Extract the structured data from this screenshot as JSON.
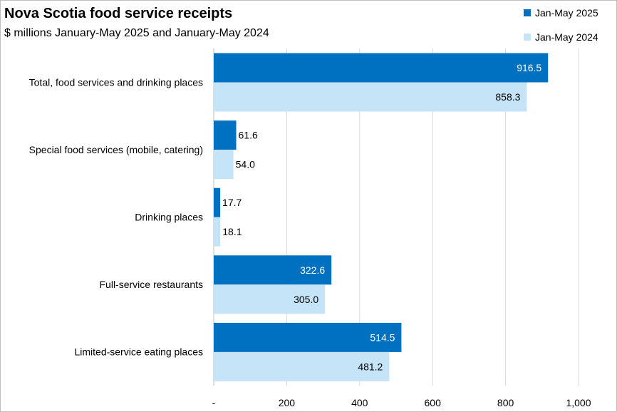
{
  "chart_data": {
    "type": "bar",
    "orientation": "horizontal",
    "title": "Nova Scotia food service receipts",
    "subtitle": "$ millions January-May 2025 and January-May 2024",
    "categories": [
      "Total, food services and drinking places",
      "Special food services (mobile, catering)",
      "Drinking places",
      "Full-service restaurants",
      "Limited-service eating places"
    ],
    "series": [
      {
        "name": "Jan-May 2025",
        "color": "#0070c0",
        "values": [
          916.5,
          61.6,
          17.7,
          322.6,
          514.5
        ]
      },
      {
        "name": "Jan-May 2024",
        "color": "#c5e4f8",
        "values": [
          858.3,
          54.0,
          18.1,
          305.0,
          481.2
        ]
      }
    ],
    "data_labels": [
      [
        "916.5",
        "61.6",
        "17.7",
        "322.6",
        "514.5"
      ],
      [
        "858.3",
        "54.0",
        "18.1",
        "305.0",
        "481.2"
      ]
    ],
    "xlim": [
      0,
      1000
    ],
    "x_ticks": [
      0,
      200,
      400,
      600,
      800,
      1000
    ],
    "x_tick_labels": [
      "-",
      "200",
      "400",
      "600",
      "800",
      "1,000"
    ],
    "grid": "vertical",
    "legend_position": "top-right"
  }
}
